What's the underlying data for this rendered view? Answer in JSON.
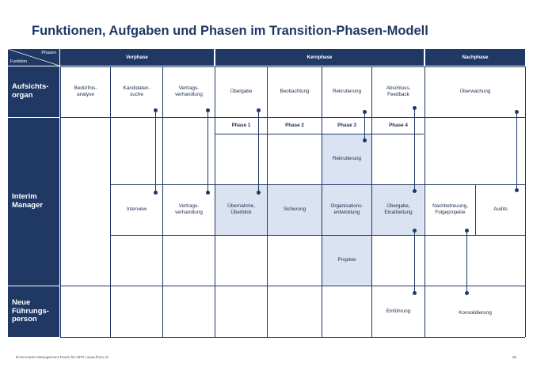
{
  "title": "Funktionen, Aufgaben und Phasen im Transition-Phasen-Modell",
  "corner": {
    "top": "Phasen",
    "bottom": "Funktion"
  },
  "phases": {
    "vorphase": "Vorphase",
    "kernphase": "Kernphase",
    "nachphase": "Nachphase"
  },
  "rows": {
    "aufsicht": "Aufsichts-\norgan",
    "interim": "Interim\nManager",
    "neue": "Neue\nFührungs-\nperson"
  },
  "aufsicht_cells": {
    "beduerfnis": "Bedürfnis-\nanalyse",
    "kandidaten": "Kandidaten-\nsuche",
    "vertrag": "Vertrags-\nverhandlung",
    "uebergabe": "Übergabe",
    "beobachtung": "Beobachtung",
    "rekrutierung": "Rekrutierung",
    "abschluss": "Abschluss,\nFeedback",
    "ueberwachung": "Überwachung"
  },
  "kern_phases": {
    "p1": "Phase 1",
    "p2": "Phase 2",
    "p3": "Phase 3",
    "p4": "Phase 4"
  },
  "interim_cells": {
    "rekrutierung": "Rekrutierung",
    "interview": "Interview",
    "vertrag": "Vertrags-\nverhandlung",
    "uebernahme": "Übernahme,\nÜberblick",
    "sicherung": "Sicherung",
    "organisation": "Organisations-\nentwicklung",
    "uebergabe": "Übergabe,\nEinarbeitung",
    "nachbetreuung": "Nachbetreuung,\nFolgeprojekte",
    "audits": "Audits",
    "projekte": "Projekte"
  },
  "neue_cells": {
    "einfuehrung": "Einführung",
    "konsolidierung": "Konsolidierung"
  },
  "footer": "Ernst Interim Management-Praxis für NPO | www.ifmm.ch",
  "page_number": "50",
  "colors": {
    "navy": "#1f3864",
    "highlight": "#dbe3f3"
  }
}
